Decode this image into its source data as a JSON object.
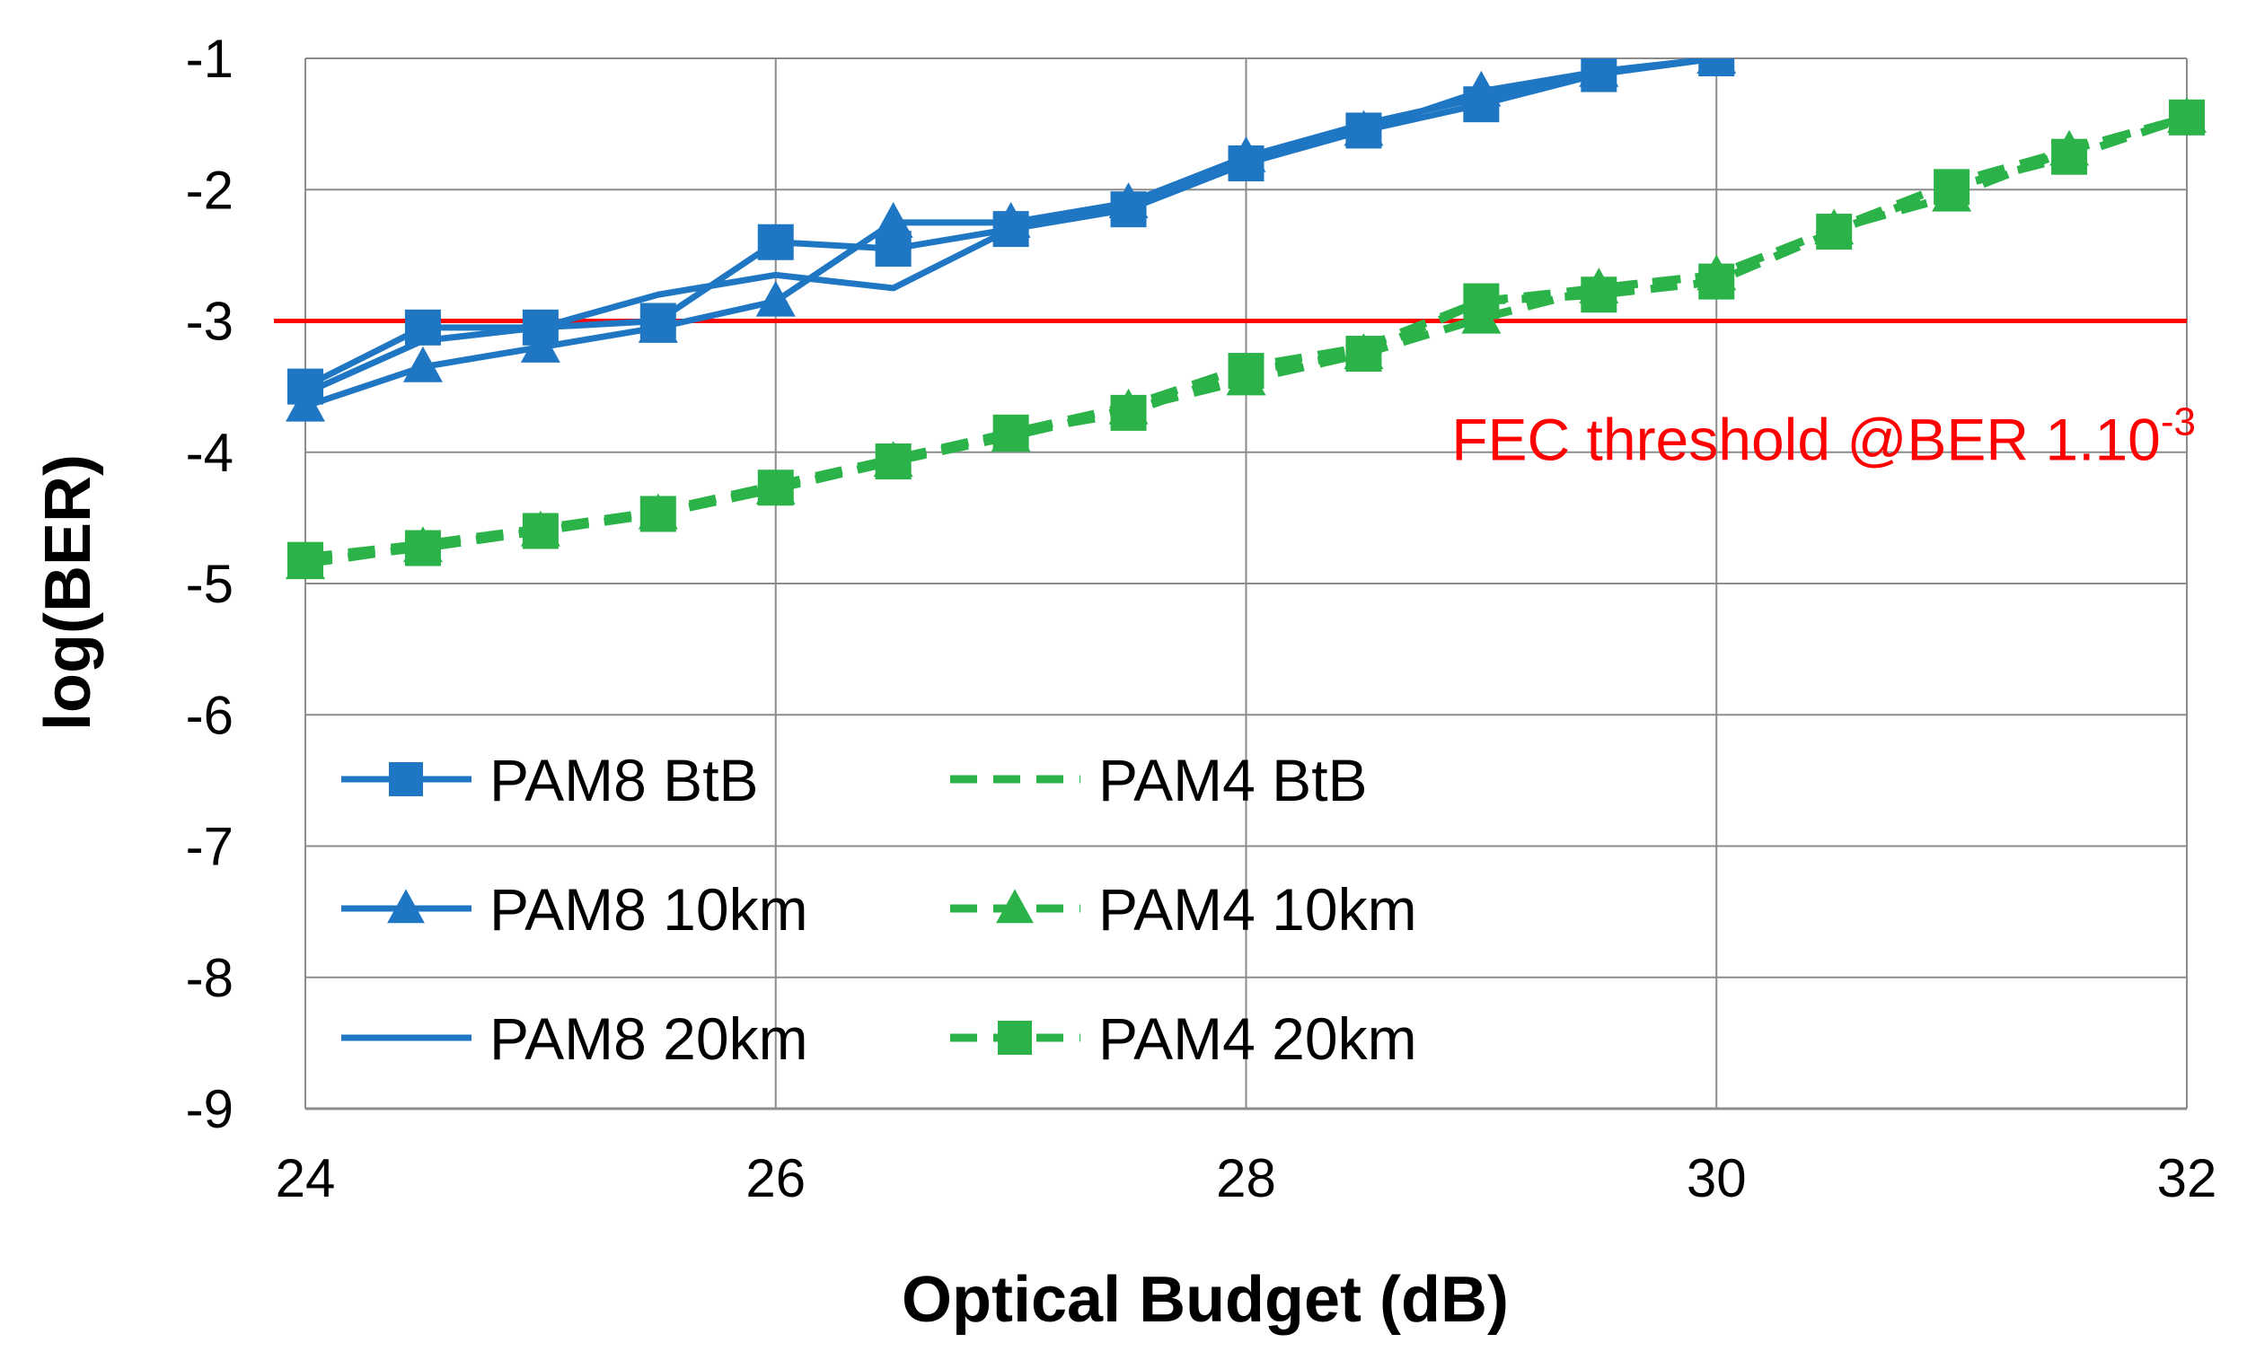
{
  "chart_data": {
    "type": "line",
    "title": "",
    "xlabel": "Optical Budget (dB)",
    "ylabel": "log(BER)",
    "xlim": [
      24,
      32
    ],
    "ylim": [
      -9,
      -1
    ],
    "xticks": [
      24,
      26,
      28,
      30,
      32
    ],
    "yticks": [
      -1,
      -2,
      -3,
      -4,
      -5,
      -6,
      -7,
      -8,
      -9
    ],
    "xtick_labels": [
      "24",
      "26",
      "28",
      "30",
      "32"
    ],
    "ytick_labels": [
      "-1",
      "-2",
      "-3",
      "-4",
      "-5",
      "-6",
      "-7",
      "-8",
      "-9"
    ],
    "grid": true,
    "threshold": {
      "y": -3,
      "color": "#ff0000",
      "label_main": "FEC threshold  @BER 1.10",
      "label_sup": "-3"
    },
    "colors": {
      "pam8": "#1f77c4",
      "pam4": "#2bb34a"
    },
    "series": [
      {
        "name": "PAM8 BtB",
        "marker": "square",
        "dash": "solid",
        "color": "#1f77c4",
        "x": [
          24,
          24.5,
          25,
          25.5,
          26,
          26.5,
          27,
          27.5,
          28,
          28.5,
          29,
          29.5,
          30
        ],
        "y": [
          -3.5,
          -3.05,
          -3.05,
          -3.0,
          -2.4,
          -2.45,
          -2.3,
          -2.15,
          -1.8,
          -1.55,
          -1.35,
          -1.12,
          -1.0
        ]
      },
      {
        "name": "PAM8 10km",
        "marker": "triangle",
        "dash": "solid",
        "color": "#1f77c4",
        "x": [
          24,
          24.5,
          25,
          25.5,
          26,
          26.5,
          27,
          27.5,
          28,
          28.5,
          29,
          29.5,
          30
        ],
        "y": [
          -3.65,
          -3.35,
          -3.2,
          -3.05,
          -2.85,
          -2.25,
          -2.25,
          -2.1,
          -1.75,
          -1.55,
          -1.25,
          -1.1,
          -1.0
        ]
      },
      {
        "name": "PAM8 20km",
        "marker": "none",
        "dash": "solid",
        "color": "#1f77c4",
        "x": [
          24,
          24.5,
          25,
          25.5,
          26,
          26.5,
          27,
          27.5,
          28,
          28.5,
          29,
          29.5,
          30
        ],
        "y": [
          -3.55,
          -3.15,
          -3.05,
          -2.8,
          -2.65,
          -2.75,
          -2.3,
          -2.1,
          -1.75,
          -1.5,
          -1.3,
          -1.1,
          -1.0
        ]
      },
      {
        "name": "PAM4 BtB",
        "marker": "none",
        "dash": "dashed",
        "color": "#2bb34a",
        "x": [
          24,
          24.5,
          25,
          25.5,
          26,
          26.5,
          27,
          27.5,
          28,
          28.5,
          29,
          29.5,
          30,
          30.5,
          31,
          31.5,
          32
        ],
        "y": [
          -4.8,
          -4.7,
          -4.58,
          -4.45,
          -4.25,
          -4.05,
          -3.85,
          -3.65,
          -3.35,
          -3.2,
          -2.85,
          -2.75,
          -2.65,
          -2.3,
          -1.95,
          -1.7,
          -1.45
        ]
      },
      {
        "name": "PAM4 10km",
        "marker": "triangle",
        "dash": "dashed",
        "color": "#2bb34a",
        "x": [
          24,
          24.5,
          25,
          25.5,
          26,
          26.5,
          27,
          27.5,
          28,
          28.5,
          29,
          29.5,
          30,
          30.5,
          31,
          31.5,
          32
        ],
        "y": [
          -4.85,
          -4.72,
          -4.6,
          -4.47,
          -4.28,
          -4.07,
          -3.88,
          -3.67,
          -3.45,
          -3.25,
          -2.98,
          -2.75,
          -2.65,
          -2.3,
          -2.05,
          -1.7,
          -1.45
        ]
      },
      {
        "name": "PAM4 20km",
        "marker": "square",
        "dash": "dashed",
        "color": "#2bb34a",
        "x": [
          24,
          24.5,
          25,
          25.5,
          26,
          26.5,
          27,
          27.5,
          28,
          28.5,
          29,
          29.5,
          30,
          30.5,
          31,
          31.5,
          32
        ],
        "y": [
          -4.82,
          -4.73,
          -4.6,
          -4.47,
          -4.27,
          -4.07,
          -3.85,
          -3.7,
          -3.38,
          -3.25,
          -2.85,
          -2.8,
          -2.7,
          -2.32,
          -1.98,
          -1.75,
          -1.45
        ]
      }
    ],
    "legend": {
      "position": "lower-left",
      "columns": 2,
      "entries": [
        "PAM8 BtB",
        "PAM4 BtB",
        "PAM8 10km",
        "PAM4 10km",
        "PAM8 20km",
        "PAM4 20km"
      ]
    }
  }
}
